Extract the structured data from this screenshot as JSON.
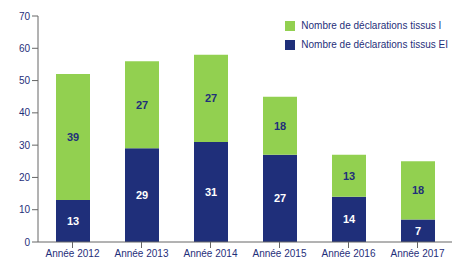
{
  "chart_data": {
    "type": "bar",
    "stacked": true,
    "categories": [
      "Année 2012",
      "Année 2013",
      "Année 2014",
      "Année 2015",
      "Année 2016",
      "Année 2017"
    ],
    "series": [
      {
        "name": "Nombre de déclarations tissus EI",
        "color": "#1f2f7a",
        "values": [
          13,
          29,
          31,
          27,
          14,
          7
        ]
      },
      {
        "name": "Nombre de déclarations tissus I",
        "color": "#92d050",
        "values": [
          39,
          27,
          27,
          18,
          13,
          18
        ]
      }
    ],
    "ylim": [
      0,
      70
    ],
    "yticks": [
      0,
      10,
      20,
      30,
      40,
      50,
      60,
      70
    ],
    "grid": false,
    "legend": "upper right",
    "data_labels": true
  }
}
